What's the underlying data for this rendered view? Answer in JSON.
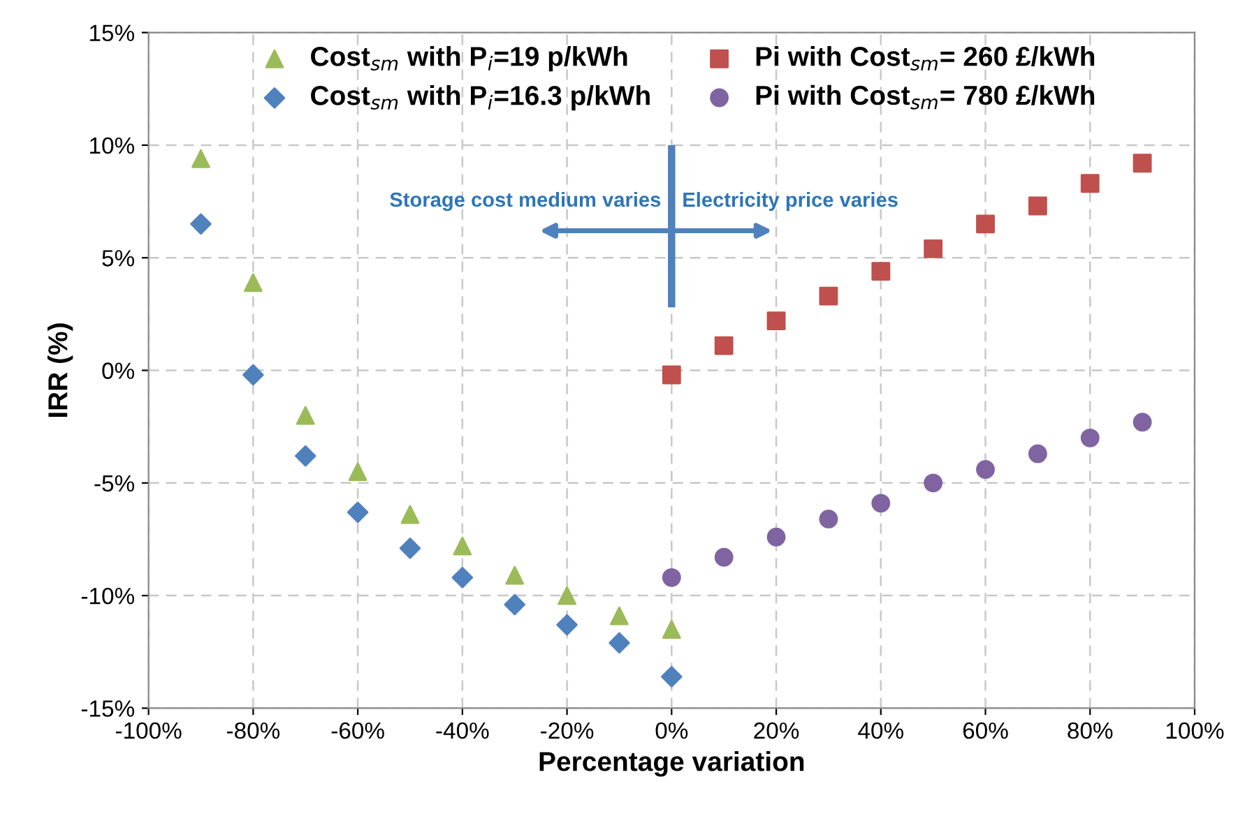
{
  "chart_data": {
    "type": "scatter",
    "xlabel": "Percentage variation",
    "ylabel": "IRR (%)",
    "xlim": [
      -100,
      100
    ],
    "ylim": [
      -15,
      15
    ],
    "xticks": [
      {
        "value": -100,
        "label": "-100%"
      },
      {
        "value": -80,
        "label": "-80%"
      },
      {
        "value": -60,
        "label": "-60%"
      },
      {
        "value": -40,
        "label": "-40%"
      },
      {
        "value": -20,
        "label": "-20%"
      },
      {
        "value": 0,
        "label": "0%"
      },
      {
        "value": 20,
        "label": "20%"
      },
      {
        "value": 40,
        "label": "40%"
      },
      {
        "value": 60,
        "label": "60%"
      },
      {
        "value": 80,
        "label": "80%"
      },
      {
        "value": 100,
        "label": "100%"
      }
    ],
    "yticks": [
      {
        "value": -15,
        "label": "-15%"
      },
      {
        "value": -10,
        "label": "-10%"
      },
      {
        "value": -5,
        "label": "-5%"
      },
      {
        "value": 0,
        "label": "0%"
      },
      {
        "value": 5,
        "label": "5%"
      },
      {
        "value": 10,
        "label": "10%"
      },
      {
        "value": 15,
        "label": "15%"
      }
    ],
    "grid": true,
    "legend": "top",
    "series": [
      {
        "name": "Cost$_{sm}$ with P$_{i}$=19 p/kWh",
        "color": "#9bbb59",
        "marker": "triangle",
        "x": [
          -90,
          -80,
          -70,
          -60,
          -50,
          -40,
          -30,
          -20,
          -10,
          0
        ],
        "values": [
          9.4,
          3.9,
          -2.0,
          -4.5,
          -6.4,
          -7.8,
          -9.1,
          -10.0,
          -10.9,
          -11.5
        ]
      },
      {
        "name": "Cost$_{sm}$ with P$_{i}$=16.3 p/kWh",
        "color": "#4f81bd",
        "marker": "diamond",
        "x": [
          -90,
          -80,
          -70,
          -60,
          -50,
          -40,
          -30,
          -20,
          -10,
          0
        ],
        "values": [
          6.5,
          -0.2,
          -3.8,
          -6.3,
          -7.9,
          -9.2,
          -10.4,
          -11.3,
          -12.1,
          -13.6
        ]
      },
      {
        "name": "Pi with Cost$_{sm}$= 260 £/kWh",
        "color": "#c0504d",
        "marker": "square",
        "x": [
          0,
          10,
          20,
          30,
          40,
          50,
          60,
          70,
          80,
          90
        ],
        "values": [
          -0.2,
          1.1,
          2.2,
          3.3,
          4.4,
          5.4,
          6.5,
          7.3,
          8.3,
          9.2
        ]
      },
      {
        "name": "Pi with Cost$_{sm}$= 780 £/kWh",
        "color": "#8064a2",
        "marker": "circle",
        "x": [
          0,
          10,
          20,
          30,
          40,
          50,
          60,
          70,
          80,
          90
        ],
        "values": [
          -9.2,
          -8.3,
          -7.4,
          -6.6,
          -5.9,
          -5.0,
          -4.4,
          -3.7,
          -3.0,
          -2.3
        ]
      }
    ],
    "annotations": [
      "Storage cost medium varies",
      "Electricity price varies"
    ]
  }
}
